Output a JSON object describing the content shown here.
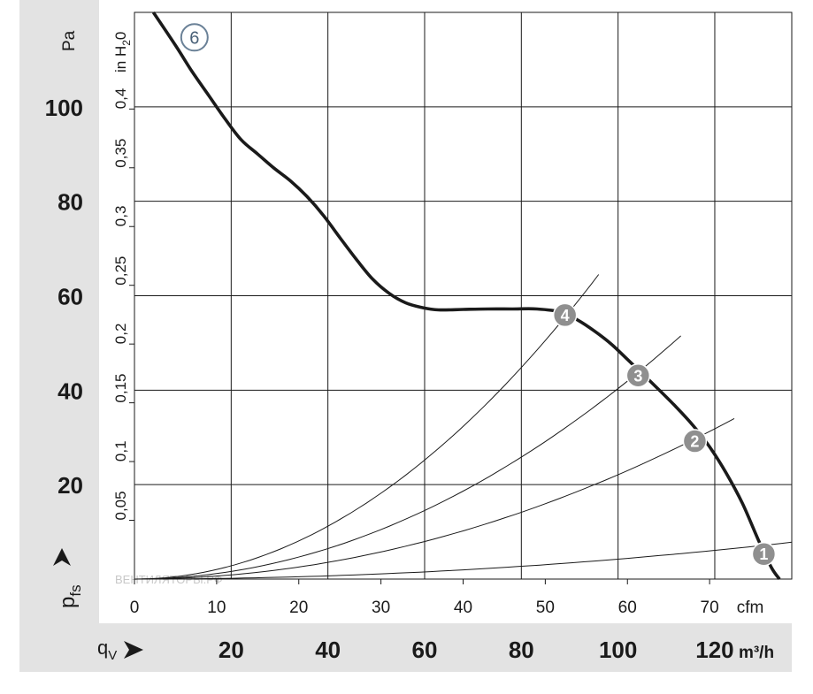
{
  "chart_data": {
    "type": "line",
    "title": "",
    "x_axis_cfm": {
      "label": "cfm",
      "ticks": [
        "0",
        "10",
        "20",
        "30",
        "40",
        "50",
        "60",
        "70"
      ],
      "range": [
        0,
        80
      ]
    },
    "x_axis_m3h": {
      "label": "m³/h",
      "symbol_main": "q",
      "symbol_sub": "V",
      "ticks": [
        "20",
        "40",
        "60",
        "80",
        "100",
        "120"
      ]
    },
    "y_axis_pa": {
      "unit": "Pa",
      "symbol_main": "p",
      "symbol_sub": "fs",
      "ticks": [
        "20",
        "40",
        "60",
        "80",
        "100"
      ],
      "range": [
        0,
        120
      ]
    },
    "y_axis_inh2o": {
      "unit_main": "in H",
      "unit_sub": "2",
      "unit_tail": "0",
      "ticks": [
        "0,05",
        "0,1",
        "0,15",
        "0,2",
        "0,25",
        "0,3",
        "0,35",
        "0,4"
      ]
    },
    "watermark": "ВЕНТИЛЯТОРЫ.РФ",
    "series": [
      {
        "name": "",
        "x": [
          2.3,
          5,
          7,
          9,
          11,
          13,
          15,
          17,
          19,
          21,
          23,
          25,
          27,
          29,
          31,
          33,
          35,
          37,
          40,
          43,
          46,
          49,
          52,
          54,
          56,
          58,
          60,
          62,
          64,
          66,
          68,
          70,
          72,
          74,
          76,
          77.5,
          78.5
        ],
        "y": [
          120,
          113,
          107.5,
          102.5,
          97.5,
          93,
          90,
          87,
          84.3,
          81,
          77,
          72.3,
          67.7,
          63.5,
          60.5,
          58.5,
          57.5,
          57,
          57.1,
          57.2,
          57.2,
          57.2,
          56.5,
          54.8,
          52.5,
          49.8,
          46.5,
          43.2,
          39.8,
          36.3,
          32.5,
          28,
          22.5,
          16,
          8,
          2.5,
          0
        ]
      }
    ],
    "system_curves": [
      {
        "label": "1",
        "x": [
          0,
          80
        ],
        "y": [
          0,
          7.8
        ]
      },
      {
        "label": "2",
        "x": [
          0,
          73
        ],
        "y": [
          0,
          34
        ]
      },
      {
        "label": "3",
        "x": [
          0,
          66.5
        ],
        "y": [
          0,
          51.5
        ]
      },
      {
        "label": "4",
        "x": [
          0,
          56.5
        ],
        "y": [
          0,
          64.5
        ]
      }
    ],
    "operating_points": [
      {
        "label": "1",
        "x": 76.6,
        "y": 5.3
      },
      {
        "label": "2",
        "x": 68.2,
        "y": 29.2
      },
      {
        "label": "3",
        "x": 61.3,
        "y": 43.1
      },
      {
        "label": "4",
        "x": 52.4,
        "y": 55.9
      }
    ],
    "curve_label": {
      "label": "6",
      "x": 7.3,
      "y": 114.7
    },
    "colors": {
      "curve": "#1a1a1a",
      "grid": "#1a1a1a",
      "marker_fill": "#8f8f8f",
      "marker_text": "#ffffff",
      "curve_label_ring": "#6a8197",
      "curve_label_text": "#4a6178",
      "side_panel": "#e3e3e3"
    }
  }
}
